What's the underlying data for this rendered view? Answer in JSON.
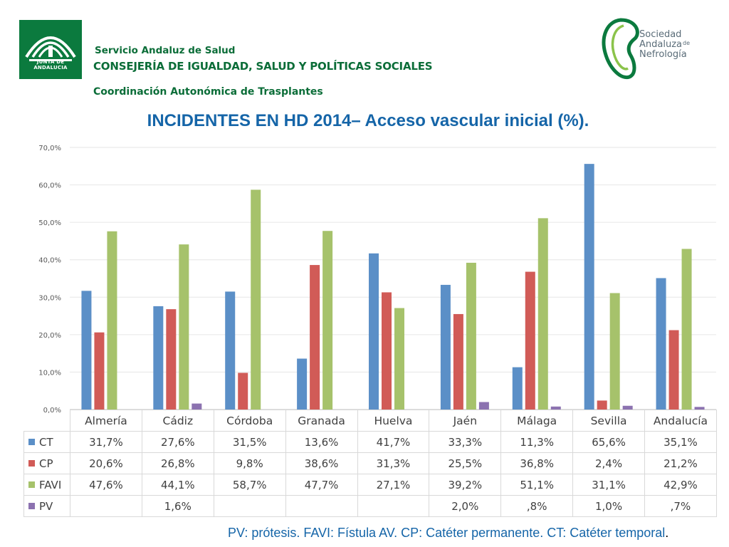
{
  "header": {
    "logo_text": "JUNTA DE ANDALUCIA",
    "line1": "Servicio Andaluz de Salud",
    "line2": "CONSEJERÍA DE IGUALDAD, SALUD Y POLÍTICAS SOCIALES",
    "line3": "Coordinación Autonómica de Trasplantes",
    "sen_logo": {
      "line1": "Sociedad",
      "line2": "Andaluza",
      "line2_small": "de",
      "line3": "Nefrología"
    }
  },
  "colors": {
    "CT": "#5b8fc7",
    "CP": "#d15b57",
    "FAVI": "#a6c26b",
    "PV": "#8c72b0",
    "title": "#1565a8",
    "header_green": "#0b6d38"
  },
  "chart_data": {
    "type": "bar",
    "title": "INCIDENTES EN HD 2014– Acceso vascular inicial  (%).",
    "categories": [
      "Almería",
      "Cádiz",
      "Córdoba",
      "Granada",
      "Huelva",
      "Jaén",
      "Málaga",
      "Sevilla",
      "Andalucía"
    ],
    "ylim": [
      0,
      70
    ],
    "yticks": [
      "0,0%",
      "10,0%",
      "20,0%",
      "30,0%",
      "40,0%",
      "50,0%",
      "60,0%",
      "70,0%"
    ],
    "grid": true,
    "legend": "table-bottom",
    "series": [
      {
        "name": "CT",
        "values": [
          31.7,
          27.6,
          31.5,
          13.6,
          41.7,
          33.3,
          11.3,
          65.6,
          35.1
        ],
        "labels": [
          "31,7%",
          "27,6%",
          "31,5%",
          "13,6%",
          "41,7%",
          "33,3%",
          "11,3%",
          "65,6%",
          "35,1%"
        ]
      },
      {
        "name": "CP",
        "values": [
          20.6,
          26.8,
          9.8,
          38.6,
          31.3,
          25.5,
          36.8,
          2.4,
          21.2
        ],
        "labels": [
          "20,6%",
          "26,8%",
          "9,8%",
          "38,6%",
          "31,3%",
          "25,5%",
          "36,8%",
          "2,4%",
          "21,2%"
        ]
      },
      {
        "name": "FAVI",
        "values": [
          47.6,
          44.1,
          58.7,
          47.7,
          27.1,
          39.2,
          51.1,
          31.1,
          42.9
        ],
        "labels": [
          "47,6%",
          "44,1%",
          "58,7%",
          "47,7%",
          "27,1%",
          "39,2%",
          "51,1%",
          "31,1%",
          "42,9%"
        ]
      },
      {
        "name": "PV",
        "values": [
          null,
          1.6,
          null,
          null,
          null,
          2.0,
          0.8,
          1.0,
          0.7
        ],
        "labels": [
          "",
          "1,6%",
          "",
          "",
          "",
          "2,0%",
          ",8%",
          "1,0%",
          ",7%"
        ]
      }
    ]
  },
  "footnote": {
    "text": "PV: prótesis. FAVI: Fístula AV. CP: Catéter permanente. CT: Catéter temporal",
    "end": "."
  }
}
